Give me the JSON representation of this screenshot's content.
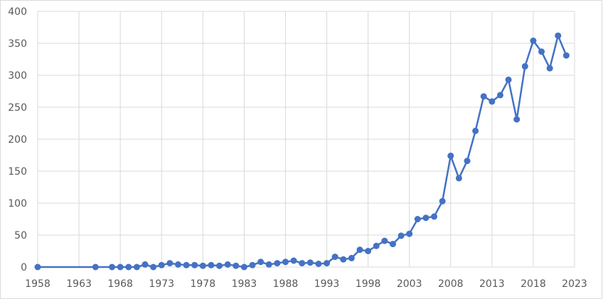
{
  "chart_data": {
    "type": "line",
    "title": "",
    "xlabel": "",
    "ylabel": "",
    "xlim": [
      1958,
      2023
    ],
    "ylim": [
      0,
      400
    ],
    "x_ticks": [
      1958,
      1963,
      1968,
      1973,
      1978,
      1983,
      1988,
      1993,
      1998,
      2003,
      2008,
      2013,
      2018,
      2023
    ],
    "y_ticks": [
      0,
      50,
      100,
      150,
      200,
      250,
      300,
      350,
      400
    ],
    "grid": true,
    "legend": "none",
    "colors": {
      "series": "#4472c4",
      "grid": "#d9d9d9",
      "text": "#595959"
    },
    "series": [
      {
        "x": [
          1958,
          1965,
          1967,
          1968,
          1969,
          1970,
          1971,
          1972,
          1973,
          1974,
          1975,
          1976,
          1977,
          1978,
          1979,
          1980,
          1981,
          1982,
          1983,
          1984,
          1985,
          1986,
          1987,
          1988,
          1989,
          1990,
          1991,
          1992,
          1993,
          1994,
          1995,
          1996,
          1997,
          1998,
          1999,
          2000,
          2001,
          2002,
          2003,
          2004,
          2005,
          2006,
          2007,
          2008,
          2009,
          2010,
          2011,
          2012,
          2013,
          2014,
          2015,
          2016,
          2017,
          2018,
          2019,
          2020,
          2021,
          2022
        ],
        "values": [
          0,
          0,
          0,
          0,
          0,
          0,
          4,
          0,
          3,
          6,
          4,
          3,
          3,
          2,
          3,
          2,
          4,
          2,
          0,
          3,
          8,
          4,
          6,
          8,
          10,
          6,
          7,
          5,
          6,
          16,
          12,
          14,
          27,
          25,
          33,
          41,
          36,
          49,
          52,
          75,
          77,
          79,
          103,
          174,
          139,
          166,
          213,
          267,
          259,
          269,
          293,
          231,
          314,
          354,
          337,
          311,
          362,
          331
        ]
      }
    ]
  }
}
